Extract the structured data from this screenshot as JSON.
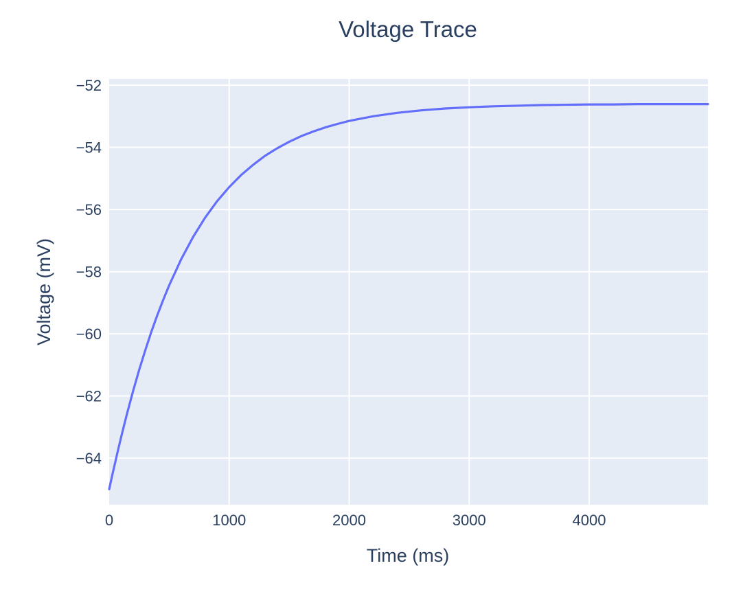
{
  "chart_data": {
    "type": "line",
    "title": "Voltage Trace",
    "xlabel": "Time (ms)",
    "ylabel": "Voltage (mV)",
    "xlim": [
      0,
      4990
    ],
    "ylim": [
      -65.5,
      -51.8
    ],
    "x_ticks": [
      0,
      1000,
      2000,
      3000,
      4000
    ],
    "x_tick_labels": [
      "0",
      "1000",
      "2000",
      "3000",
      "4000"
    ],
    "y_ticks": [
      -52,
      -54,
      -56,
      -58,
      -60,
      -62,
      -64
    ],
    "y_tick_labels": [
      "−52",
      "−54",
      "−56",
      "−58",
      "−60",
      "−62",
      "−64"
    ],
    "grid": true,
    "legend": "none",
    "colors": {
      "plot_bg": "#e5ecf6",
      "grid": "#ffffff",
      "text": "#2a3f5f",
      "line": "#636efa"
    },
    "series": [
      {
        "color": "#636efa",
        "x": [
          0,
          25,
          50,
          75,
          100,
          125,
          150,
          200,
          250,
          300,
          350,
          400,
          450,
          500,
          600,
          700,
          800,
          900,
          1000,
          1100,
          1200,
          1300,
          1400,
          1500,
          1600,
          1700,
          1800,
          1900,
          2000,
          2200,
          2400,
          2600,
          2800,
          3000,
          3200,
          3400,
          3600,
          3800,
          4000,
          4200,
          4400,
          4600,
          4800,
          4990
        ],
        "y": [
          -65.0,
          -64.56,
          -64.14,
          -63.72,
          -63.32,
          -62.93,
          -62.55,
          -61.83,
          -61.16,
          -60.54,
          -59.95,
          -59.41,
          -58.91,
          -58.44,
          -57.6,
          -56.88,
          -56.26,
          -55.73,
          -55.28,
          -54.89,
          -54.56,
          -54.27,
          -54.03,
          -53.82,
          -53.64,
          -53.49,
          -53.36,
          -53.25,
          -53.15,
          -53.0,
          -52.89,
          -52.81,
          -52.75,
          -52.71,
          -52.68,
          -52.66,
          -52.64,
          -52.63,
          -52.62,
          -52.62,
          -52.61,
          -52.61,
          -52.61,
          -52.61
        ]
      }
    ]
  }
}
